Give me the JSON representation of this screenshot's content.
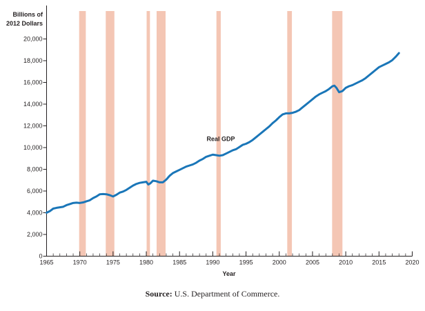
{
  "chart_data": {
    "type": "line",
    "title": "",
    "ylabel_line1": "Billions of",
    "ylabel_line2": "2012 Dollars",
    "xlabel": "Year",
    "xlim": [
      1965,
      2020
    ],
    "ylim": [
      0,
      21000
    ],
    "x_ticks": [
      1965,
      1970,
      1975,
      1980,
      1985,
      1990,
      1995,
      2000,
      2005,
      2010,
      2015,
      2020
    ],
    "y_ticks": [
      0,
      2000,
      4000,
      6000,
      8000,
      10000,
      12000,
      14000,
      16000,
      18000,
      20000
    ],
    "y_tick_labels": [
      "0",
      "2,000",
      "4,000",
      "6,000",
      "8,000",
      "10,000",
      "12,000",
      "14,000",
      "16,000",
      "18,000",
      "20,000"
    ],
    "series_color": "#1a76b8",
    "recession_color": "#f4c6b4",
    "axis_color": "#231f20",
    "recessions": [
      {
        "start": 1969.9,
        "end": 1970.9
      },
      {
        "start": 1973.9,
        "end": 1975.2
      },
      {
        "start": 1980.05,
        "end": 1980.55
      },
      {
        "start": 1981.55,
        "end": 1982.9
      },
      {
        "start": 1990.55,
        "end": 1991.2
      },
      {
        "start": 2001.2,
        "end": 2001.9
      },
      {
        "start": 2007.95,
        "end": 2009.5
      }
    ],
    "series": [
      {
        "name": "Real GDP",
        "annotation": {
          "text": "Real GDP",
          "x": 1991.2,
          "y": 10600
        },
        "x": [
          1965,
          1965.5,
          1966,
          1966.5,
          1967,
          1967.5,
          1968,
          1968.5,
          1969,
          1969.5,
          1970,
          1970.5,
          1971,
          1971.5,
          1972,
          1972.5,
          1973,
          1973.5,
          1974,
          1974.5,
          1975,
          1975.5,
          1976,
          1976.5,
          1977,
          1977.5,
          1978,
          1978.5,
          1979,
          1979.5,
          1980,
          1980.3,
          1980.6,
          1981,
          1981.5,
          1982,
          1982.5,
          1983,
          1983.5,
          1984,
          1984.5,
          1985,
          1985.5,
          1986,
          1986.5,
          1987,
          1987.5,
          1988,
          1988.5,
          1989,
          1989.5,
          1990,
          1990.5,
          1991,
          1991.5,
          1992,
          1992.5,
          1993,
          1993.5,
          1994,
          1994.5,
          1995,
          1995.5,
          1996,
          1996.5,
          1997,
          1997.5,
          1998,
          1998.5,
          1999,
          1999.5,
          2000,
          2000.5,
          2001,
          2001.5,
          2002,
          2002.5,
          2003,
          2003.5,
          2004,
          2004.5,
          2005,
          2005.5,
          2006,
          2006.5,
          2007,
          2007.5,
          2008,
          2008.3,
          2008.6,
          2009,
          2009.5,
          2010,
          2010.5,
          2011,
          2011.5,
          2012,
          2012.5,
          2013,
          2013.5,
          2014,
          2014.5,
          2015,
          2015.5,
          2016,
          2016.5,
          2017,
          2017.5,
          2018
        ],
        "values": [
          4000,
          4150,
          4380,
          4450,
          4500,
          4550,
          4700,
          4800,
          4900,
          4930,
          4900,
          4950,
          5050,
          5150,
          5350,
          5500,
          5700,
          5720,
          5700,
          5620,
          5500,
          5650,
          5850,
          5950,
          6100,
          6300,
          6500,
          6650,
          6750,
          6800,
          6850,
          6600,
          6700,
          6950,
          6900,
          6800,
          6800,
          7050,
          7400,
          7650,
          7800,
          7950,
          8100,
          8250,
          8350,
          8450,
          8600,
          8800,
          8950,
          9150,
          9250,
          9350,
          9300,
          9250,
          9300,
          9450,
          9600,
          9750,
          9850,
          10050,
          10250,
          10350,
          10500,
          10700,
          10950,
          11200,
          11450,
          11700,
          11950,
          12250,
          12500,
          12800,
          13050,
          13150,
          13150,
          13200,
          13300,
          13450,
          13700,
          13950,
          14200,
          14450,
          14700,
          14900,
          15050,
          15200,
          15400,
          15650,
          15700,
          15500,
          15100,
          15200,
          15500,
          15650,
          15750,
          15900,
          16050,
          16200,
          16400,
          16650,
          16900,
          17150,
          17400,
          17550,
          17700,
          17850,
          18050,
          18350,
          18700
        ]
      }
    ]
  },
  "source_label": "Source:",
  "source_text": "U.S. Department of Commerce."
}
